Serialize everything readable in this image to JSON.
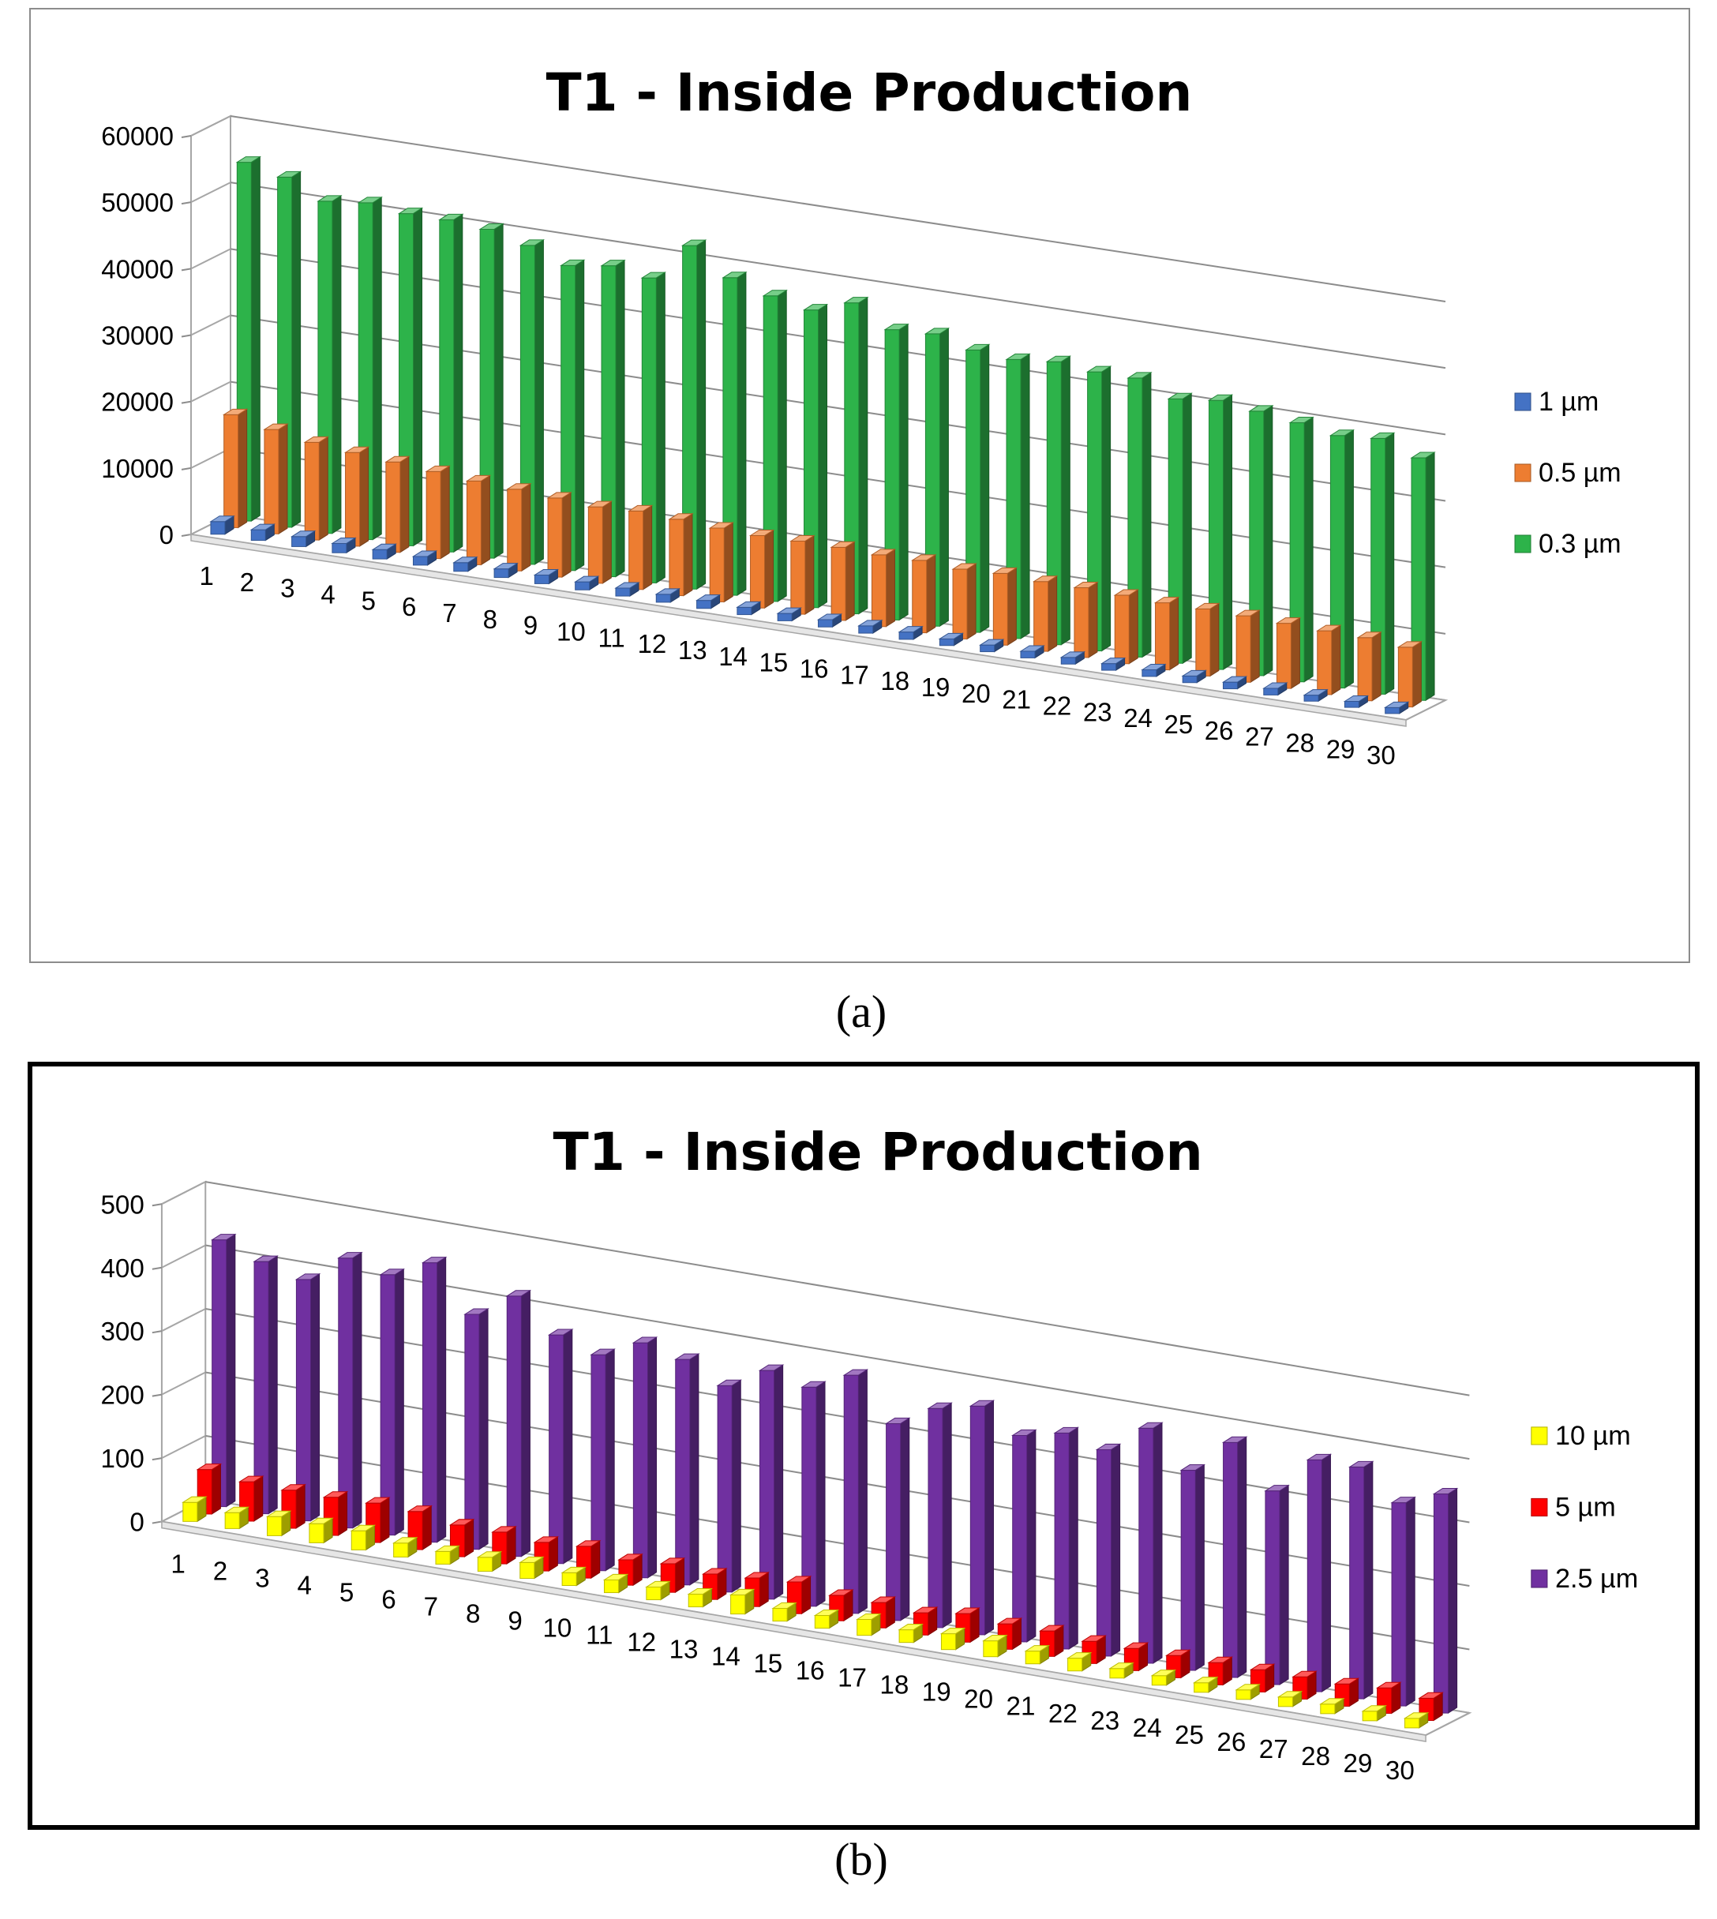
{
  "panel_labels": {
    "a": "(a)",
    "b": "(b)"
  },
  "chart_data": [
    {
      "type": "bar",
      "title": "T1 - Inside Production",
      "xlabel": "",
      "ylabel": "",
      "ylim": [
        0,
        60000
      ],
      "yticks": [
        "0",
        "10000",
        "20000",
        "30000",
        "40000",
        "50000",
        "60000"
      ],
      "grid": true,
      "legend_position": "right",
      "categories": [
        "1",
        "2",
        "3",
        "4",
        "5",
        "6",
        "7",
        "8",
        "9",
        "10",
        "11",
        "12",
        "13",
        "14",
        "15",
        "16",
        "17",
        "18",
        "19",
        "20",
        "21",
        "22",
        "23",
        "24",
        "25",
        "26",
        "27",
        "28",
        "29",
        "30"
      ],
      "series": [
        {
          "name": "1 µm",
          "color": "#4472c4",
          "values": [
            1900,
            1600,
            1500,
            1400,
            1400,
            1300,
            1300,
            1300,
            1300,
            1200,
            1200,
            1200,
            1200,
            1100,
            1100,
            1100,
            1100,
            1100,
            1000,
            1000,
            1000,
            1000,
            1000,
            1000,
            1000,
            1000,
            1000,
            900,
            900,
            900
          ]
        },
        {
          "name": "0.5 µm",
          "color": "#ed7d31",
          "values": [
            17000,
            15700,
            14700,
            14100,
            13600,
            13100,
            12600,
            12300,
            11900,
            11500,
            11800,
            11500,
            11100,
            10900,
            11000,
            11000,
            10800,
            10900,
            10500,
            10800,
            10500,
            10500,
            10300,
            10100,
            10100,
            10000,
            9800,
            9600,
            9500,
            9000
          ]
        },
        {
          "name": "0.3 µm",
          "color": "#2db34a",
          "values": [
            54000,
            52700,
            50000,
            50700,
            50000,
            50000,
            49500,
            48000,
            45900,
            46800,
            45900,
            51700,
            47800,
            46000,
            44800,
            46800,
            43700,
            44000,
            42500,
            42000,
            42600,
            42000,
            42000,
            39800,
            40500,
            39800,
            39000,
            38000,
            38500,
            36500
          ]
        }
      ]
    },
    {
      "type": "bar",
      "title": "T1 - Inside Production",
      "xlabel": "",
      "ylabel": "",
      "ylim": [
        0,
        500
      ],
      "yticks": [
        "0",
        "100",
        "200",
        "300",
        "400",
        "500"
      ],
      "grid": true,
      "legend_position": "right",
      "categories": [
        "1",
        "2",
        "3",
        "4",
        "5",
        "6",
        "7",
        "8",
        "9",
        "10",
        "11",
        "12",
        "13",
        "14",
        "15",
        "16",
        "17",
        "18",
        "19",
        "20",
        "21",
        "22",
        "23",
        "24",
        "25",
        "26",
        "27",
        "28",
        "29",
        "30"
      ],
      "series": [
        {
          "name": "10 µm",
          "color": "#ffff00",
          "values": [
            30,
            25,
            30,
            30,
            30,
            22,
            20,
            22,
            25,
            20,
            20,
            20,
            20,
            30,
            20,
            20,
            25,
            20,
            25,
            25,
            20,
            20,
            15,
            15,
            15,
            15,
            15,
            15,
            15,
            15
          ]
        },
        {
          "name": "5 µm",
          "color": "#ff0000",
          "values": [
            70,
            62,
            60,
            60,
            62,
            60,
            50,
            50,
            45,
            50,
            40,
            45,
            40,
            45,
            50,
            40,
            40,
            35,
            45,
            40,
            40,
            35,
            35,
            35,
            35,
            35,
            35,
            35,
            40,
            35
          ]
        },
        {
          "name": "2.5 µm",
          "color": "#7030a0",
          "values": [
            420,
            397,
            380,
            425,
            410,
            440,
            370,
            410,
            360,
            340,
            370,
            355,
            325,
            360,
            345,
            375,
            310,
            345,
            360,
            325,
            340,
            325,
            370,
            315,
            370,
            305,
            365,
            365,
            320,
            345
          ]
        }
      ]
    }
  ]
}
